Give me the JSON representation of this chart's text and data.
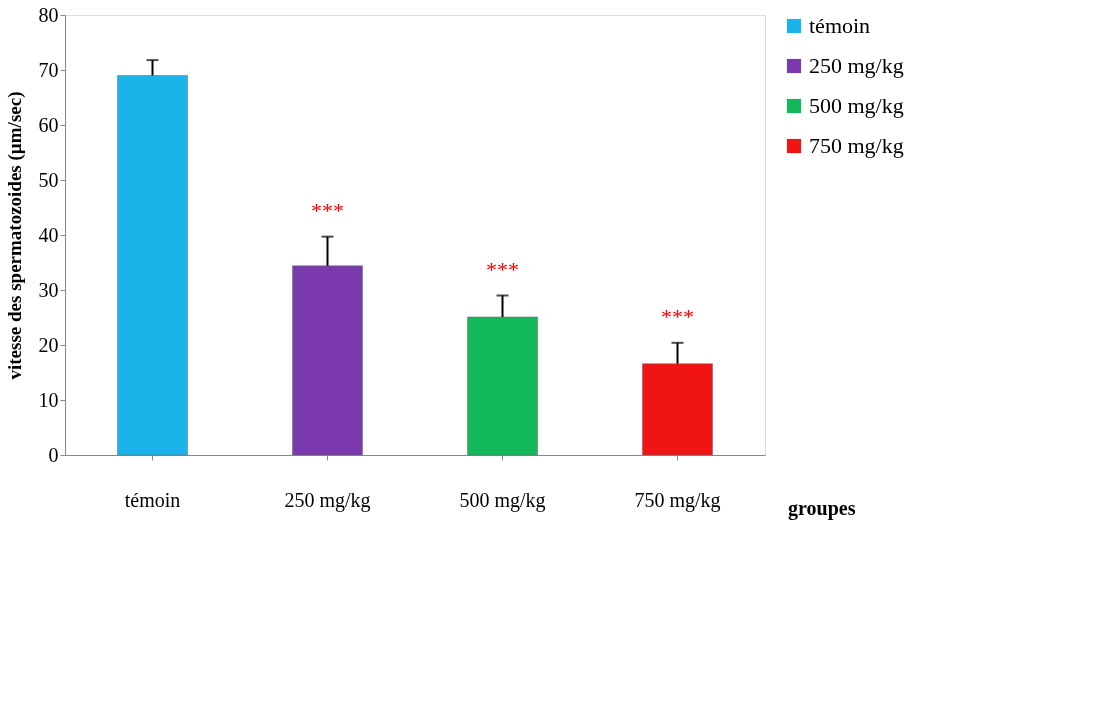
{
  "chart_data": {
    "type": "bar",
    "xlabel": "groupes",
    "ylabel": "vitesse des spermatozoides (µm/sec)",
    "categories": [
      "témoin",
      "250 mg/kg",
      "500 mg/kg",
      "750 mg/kg"
    ],
    "series": [
      {
        "name": "témoin",
        "color": "#1ab4ea",
        "values": [
          69,
          null,
          null,
          null
        ],
        "errors": [
          [
            69,
            71.8
          ],
          null,
          null,
          null
        ]
      },
      {
        "name": "250 mg/kg",
        "color": "#7a3aae",
        "values": [
          null,
          34.4,
          null,
          null
        ],
        "errors": [
          null,
          [
            34.4,
            39.7
          ],
          null,
          null
        ]
      },
      {
        "name": "500 mg/kg",
        "color": "#12b85a",
        "values": [
          null,
          null,
          25.1,
          null
        ],
        "errors": [
          null,
          null,
          [
            25.1,
            29
          ],
          null
        ]
      },
      {
        "name": "750 mg/kg",
        "color": "#f01414",
        "values": [
          null,
          null,
          null,
          16.6
        ],
        "errors": [
          null,
          null,
          null,
          [
            16.6,
            20.4
          ]
        ]
      }
    ],
    "ylim": [
      0,
      80
    ],
    "yticks": [
      0,
      10,
      20,
      30,
      40,
      50,
      60,
      70,
      80
    ],
    "grid": false,
    "legend": "top right",
    "annotations": [
      {
        "text": "***",
        "x": "250 mg/kg",
        "y": 39.7
      },
      {
        "text": "***",
        "x": "500 mg/kg",
        "y": 29
      },
      {
        "text": "***",
        "x": "750 mg/kg",
        "y": 20.4
      }
    ]
  }
}
